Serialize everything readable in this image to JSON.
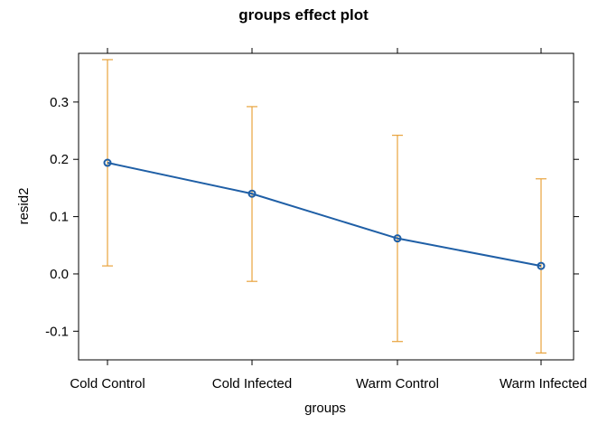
{
  "chart_data": {
    "type": "line",
    "title": "groups effect plot",
    "xlabel": "groups",
    "ylabel": "resid2",
    "categories": [
      "Cold Control",
      "Cold Infected",
      "Warm Control",
      "Warm Infected"
    ],
    "values": [
      0.194,
      0.14,
      0.062,
      0.014
    ],
    "lower": [
      0.014,
      -0.013,
      -0.118,
      -0.138
    ],
    "upper": [
      0.374,
      0.292,
      0.242,
      0.166
    ],
    "ylim": [
      -0.15,
      0.385
    ],
    "yticks": [
      "-0.1",
      "0.0",
      "0.1",
      "0.2",
      "0.3"
    ],
    "ytick_values": [
      -0.1,
      0.0,
      0.1,
      0.2,
      0.3
    ],
    "grid": false,
    "colors": {
      "line": "#1f5fa6",
      "errorbar": "#e8a33d",
      "axis": "#000000"
    }
  }
}
